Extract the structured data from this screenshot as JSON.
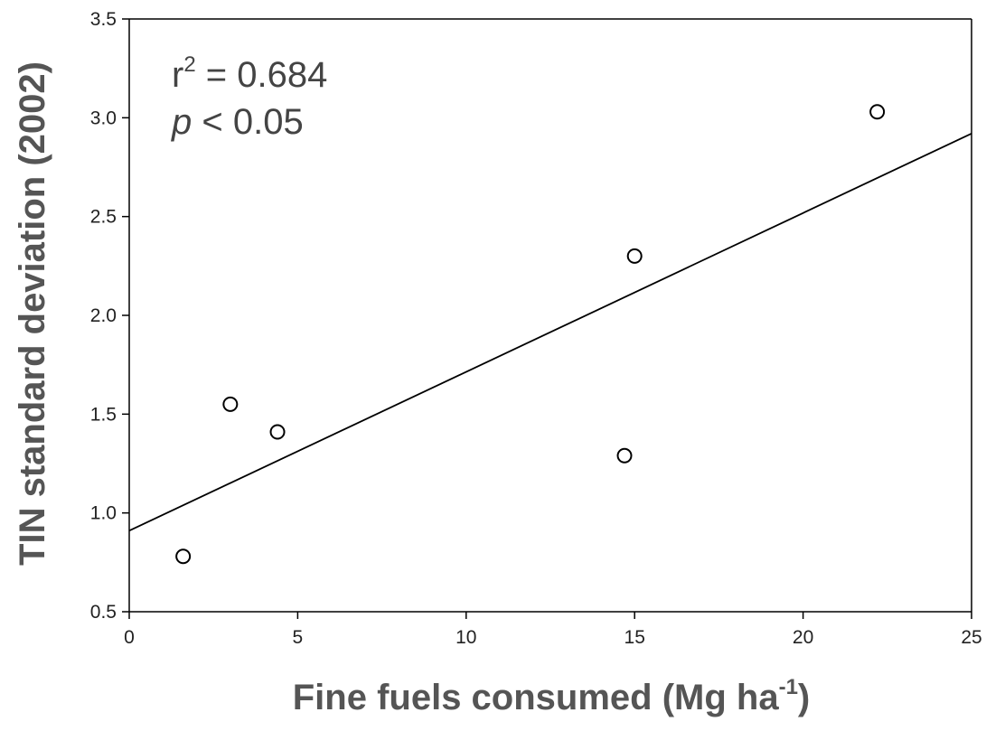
{
  "chart_data": {
    "type": "scatter",
    "xlabel": "Fine fuels consumed (Mg ha",
    "xlabel_sup": "-1",
    "xlabel_end": ")",
    "ylabel": "TIN standard deviation (2002)",
    "xlim": [
      0,
      25
    ],
    "ylim": [
      0.5,
      3.5
    ],
    "x_ticks": [
      0,
      5,
      10,
      15,
      20,
      25
    ],
    "x_tick_labels": [
      "0",
      "5",
      "10",
      "15",
      "20",
      "25"
    ],
    "y_ticks": [
      0.5,
      1.0,
      1.5,
      2.0,
      2.5,
      3.0,
      3.5
    ],
    "y_tick_labels": [
      "0.5",
      "1.0",
      "1.5",
      "2.0",
      "2.5",
      "3.0",
      "3.5"
    ],
    "grid": false,
    "series": [
      {
        "marker": "open-circle",
        "points": [
          {
            "x": 1.6,
            "y": 0.78
          },
          {
            "x": 3.0,
            "y": 1.55
          },
          {
            "x": 4.4,
            "y": 1.41
          },
          {
            "x": 14.7,
            "y": 1.29
          },
          {
            "x": 15.0,
            "y": 2.3
          },
          {
            "x": 22.2,
            "y": 3.03
          }
        ]
      }
    ],
    "regression_line": {
      "x": [
        0,
        25
      ],
      "y": [
        0.91,
        2.92
      ]
    },
    "annotations": {
      "r2_prefix": "r",
      "r2_sup": "2",
      "r2_text": " = 0.684",
      "p_symbol": "p",
      "p_text": " < 0.05"
    }
  }
}
